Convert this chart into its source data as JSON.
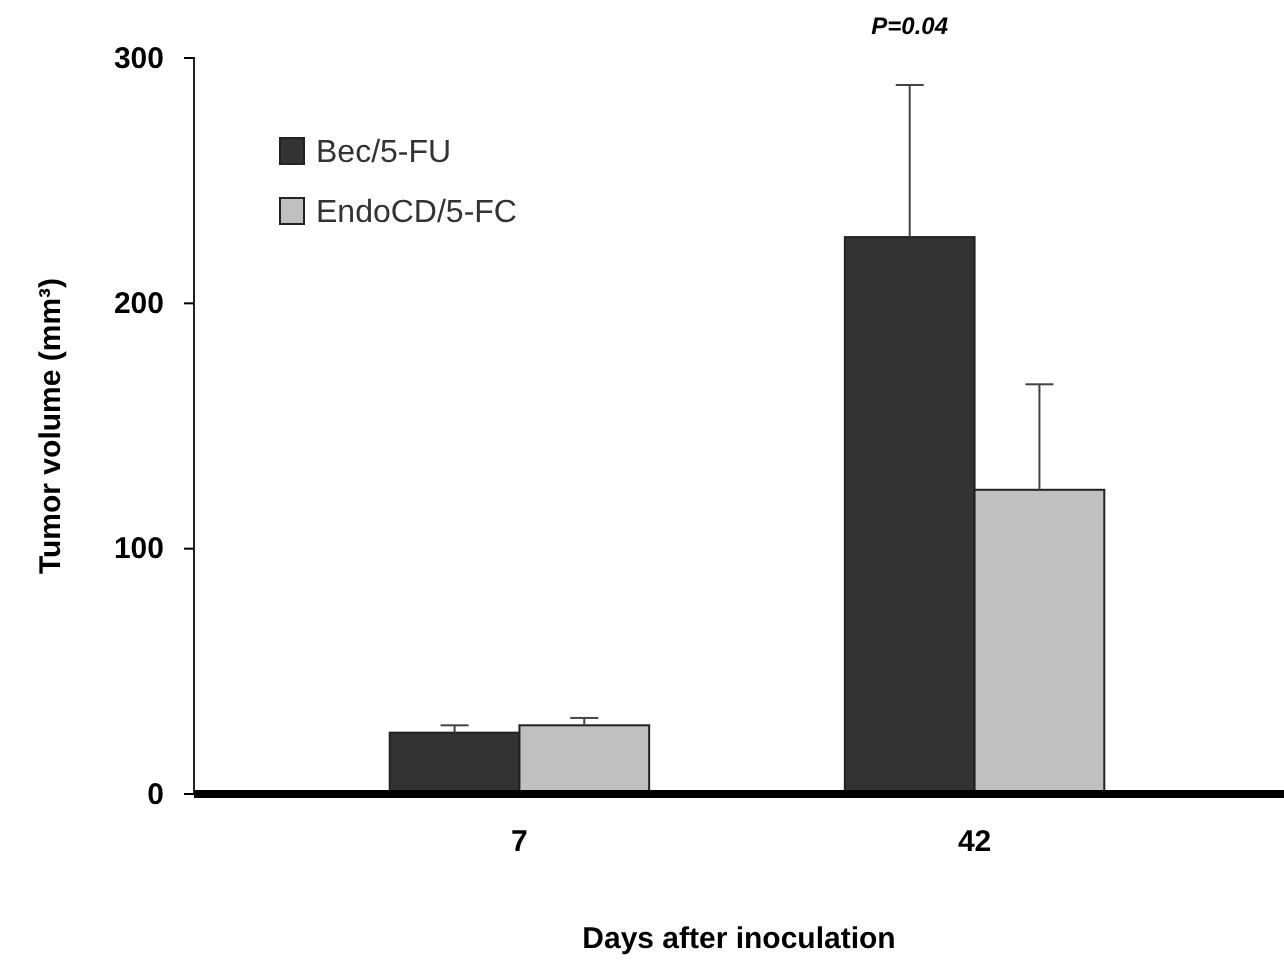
{
  "chart_data": {
    "type": "bar",
    "xlabel": "Days after inoculation",
    "ylabel": "Tumor volume  (mm³)",
    "categories": [
      "7",
      "42"
    ],
    "series": [
      {
        "name": "Bec/5-FU",
        "color": "#333333",
        "values": [
          25,
          227
        ],
        "errors": [
          [
            25,
            28
          ],
          [
            227,
            289
          ]
        ]
      },
      {
        "name": "EndoCD/5-FC",
        "color": "#c0c0c0",
        "values": [
          28,
          124
        ],
        "errors": [
          [
            28,
            31
          ],
          [
            124,
            167
          ]
        ]
      }
    ],
    "ylim": [
      0,
      300
    ],
    "yticks": [
      0,
      100,
      200,
      300
    ],
    "grid": false,
    "legend": "top left",
    "annotations": [
      "P=0.04"
    ]
  }
}
